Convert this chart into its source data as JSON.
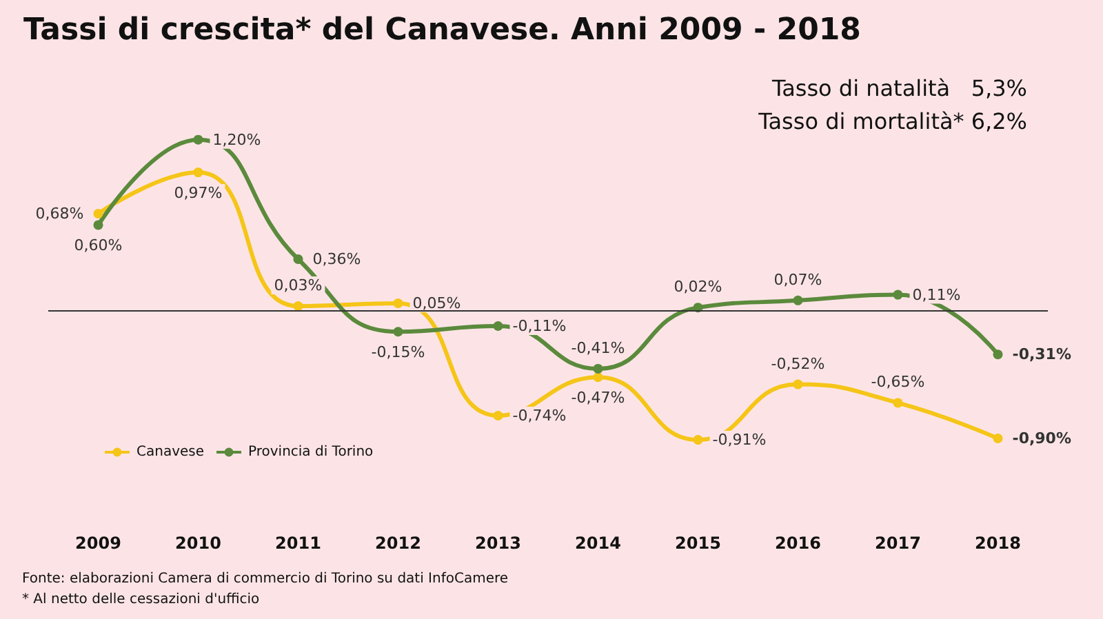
{
  "chart_data": {
    "type": "line",
    "title": "Tassi di crescita* del Canavese. Anni 2009 - 2018",
    "categories": [
      "2009",
      "2010",
      "2011",
      "2012",
      "2013",
      "2014",
      "2015",
      "2016",
      "2017",
      "2018"
    ],
    "series": [
      {
        "name": "Canavese",
        "color": "#f5c518",
        "values": [
          0.68,
          0.97,
          0.03,
          0.05,
          -0.74,
          -0.47,
          -0.91,
          -0.52,
          -0.65,
          -0.9
        ],
        "value_labels": [
          "0,68%",
          "0,97%",
          "0,03%",
          "0,05%",
          "-0,74%",
          "-0,47%",
          "-0,91%",
          "-0,52%",
          "-0,65%",
          "-0,90%"
        ]
      },
      {
        "name": "Provincia di Torino",
        "color": "#5b8a3c",
        "values": [
          0.6,
          1.2,
          0.36,
          -0.15,
          -0.11,
          -0.41,
          0.02,
          0.07,
          0.11,
          -0.31
        ],
        "value_labels": [
          "0,60%",
          "1,20%",
          "0,36%",
          "-0,15%",
          "-0,11%",
          "-0,41%",
          "0,02%",
          "0,07%",
          "0,11%",
          "-0,31%"
        ]
      }
    ],
    "ref_lines": [
      {
        "axis": "y",
        "value": 0,
        "color": "#333333"
      }
    ],
    "annotations": [
      "Tasso di natalità   5,3%",
      "Tasso di mortalità* 6,2%",
      "Fonte: elaborazioni Camera di commercio di Torino su dati InfoCamere",
      "* Al netto delle cessazioni d'ufficio"
    ],
    "legend": "bottom left",
    "marker": "circle",
    "line_style": "solid",
    "grid": false,
    "tick_labels": "x"
  }
}
